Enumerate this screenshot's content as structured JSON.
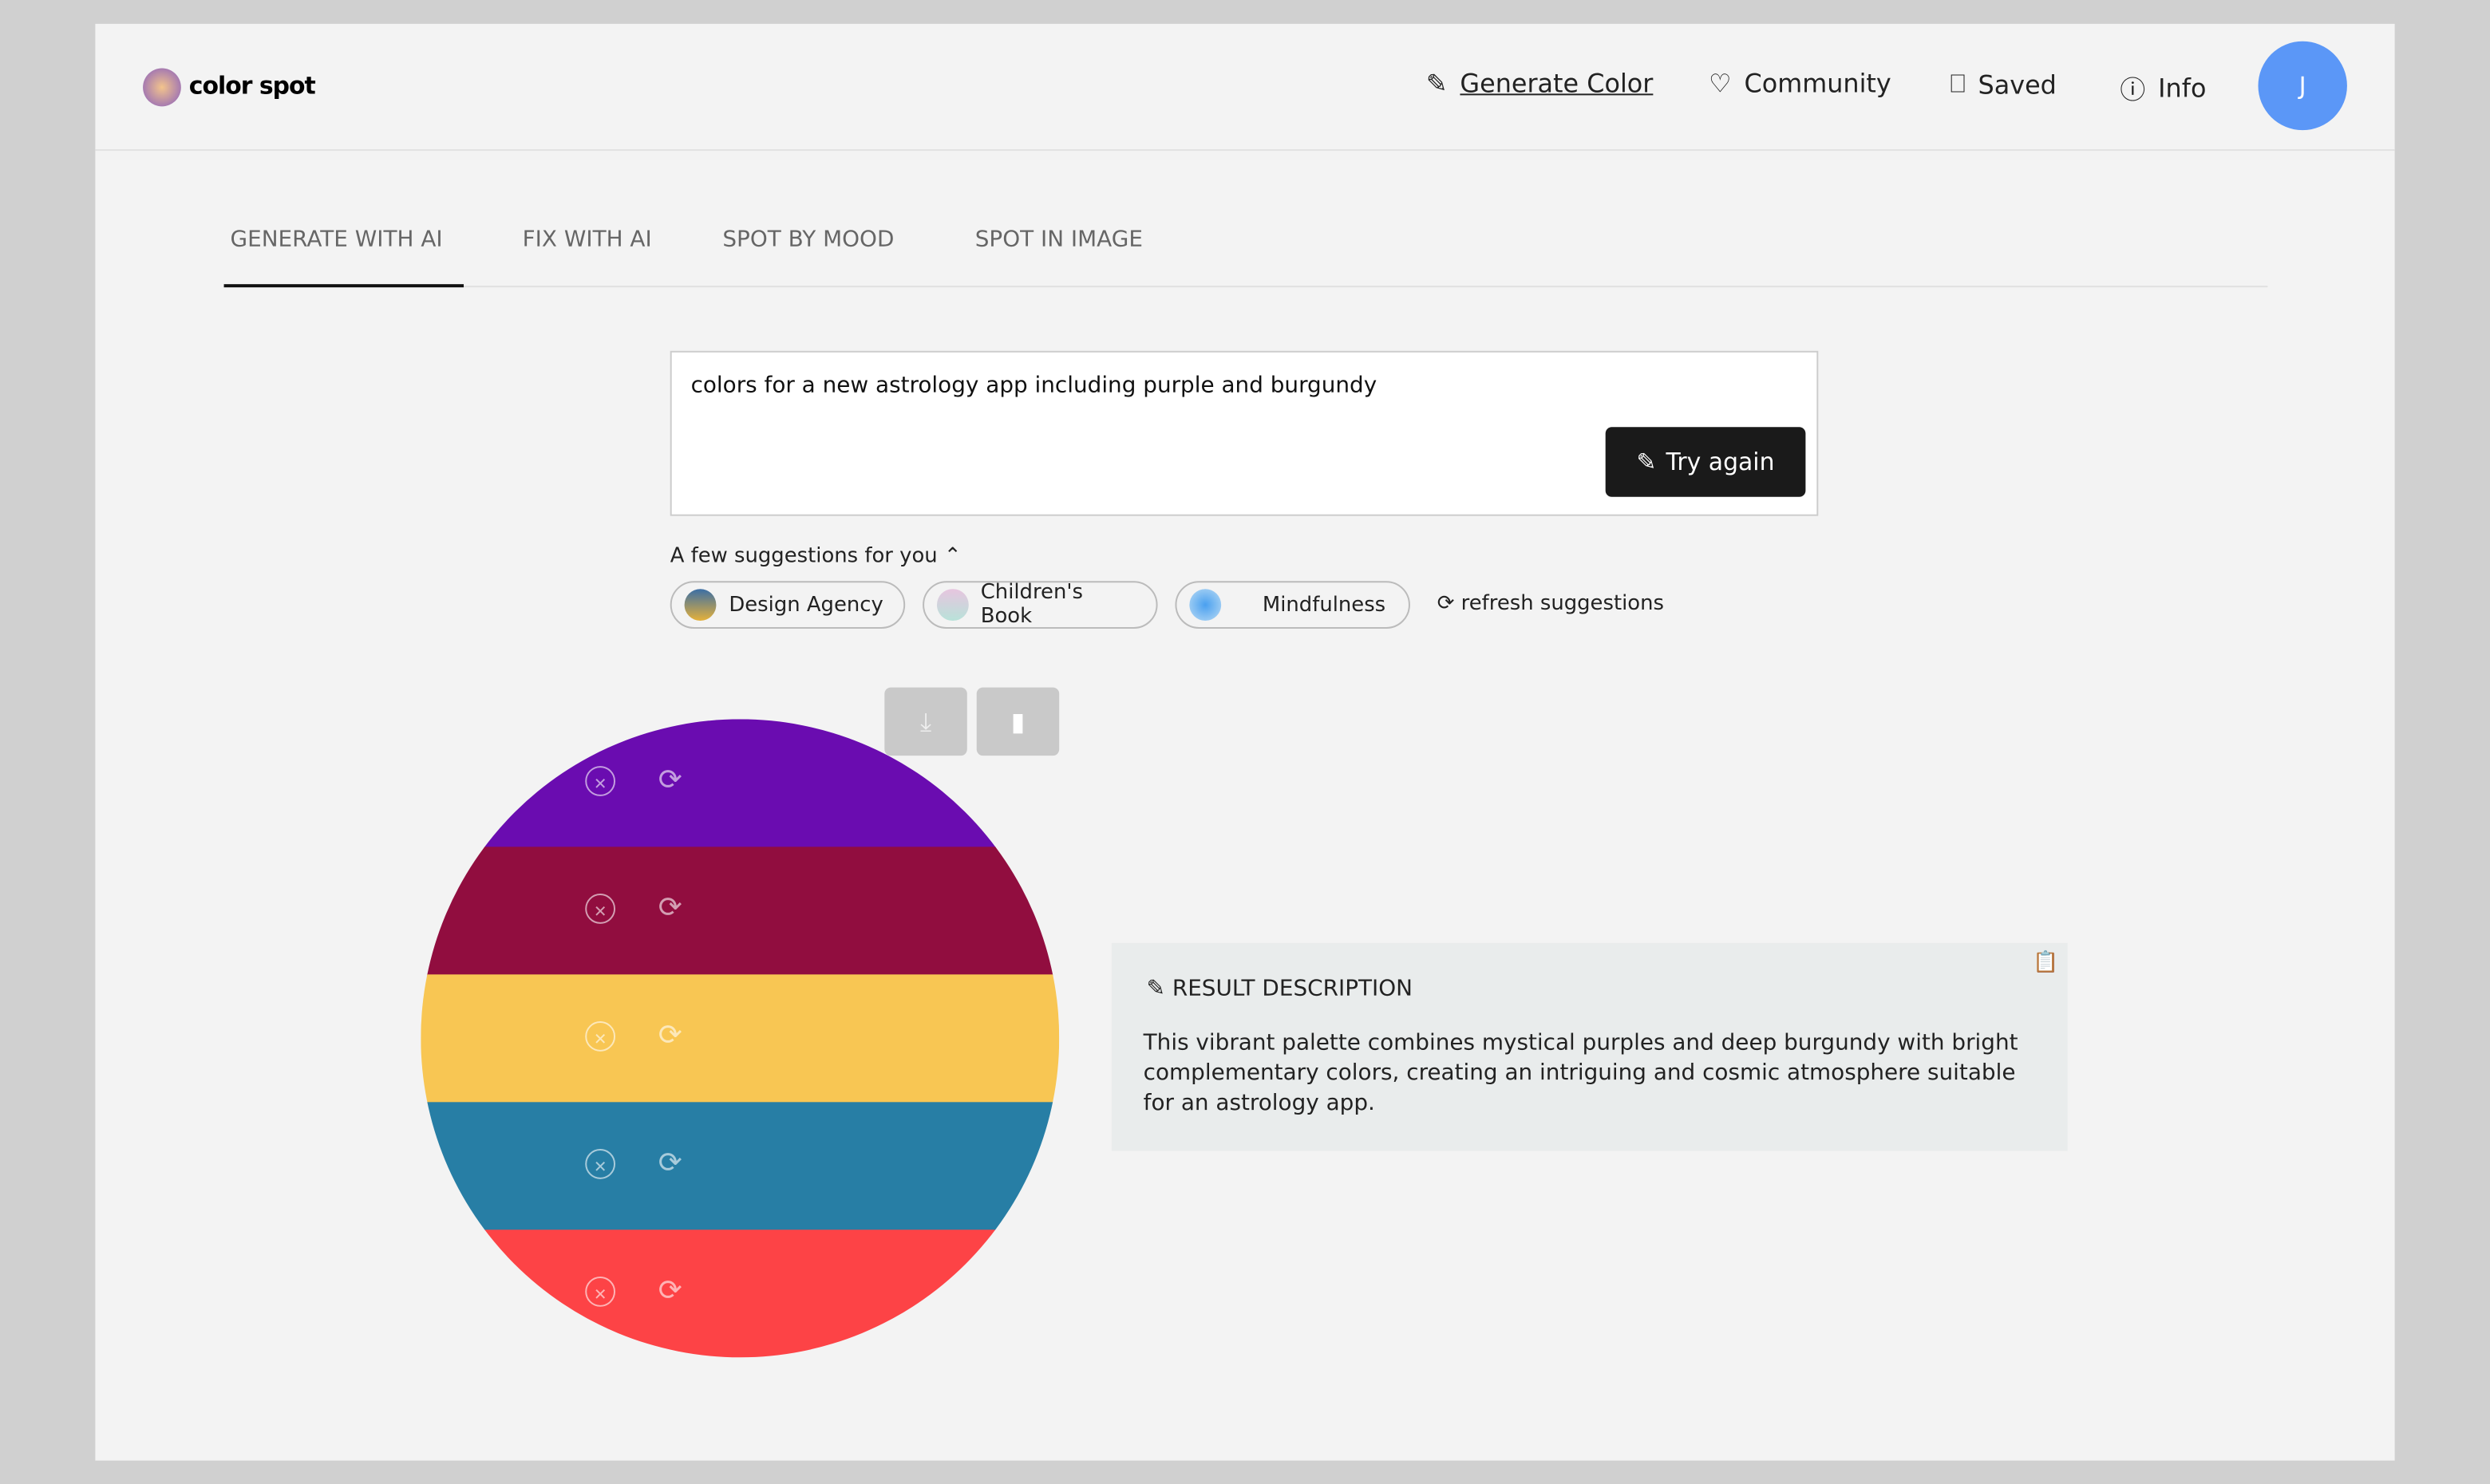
{
  "header": {
    "logo": "color spot",
    "nav": [
      "Generate Color",
      "Community",
      "Saved",
      "Info"
    ],
    "avatar": "J"
  },
  "tabs": [
    "GENERATE WITH AI",
    "FIX WITH AI",
    "SPOT BY MOOD",
    "SPOT IN IMAGE"
  ],
  "prompt": {
    "text": "colors for a new astrology app including purple and burgundy",
    "button": "Try again"
  },
  "suggestions": {
    "label": "A few suggestions for you",
    "items": [
      "Design Agency",
      "Children's Book",
      "Mindfulness"
    ],
    "refresh": "refresh suggestions"
  },
  "palette": [
    "#6a0cb0",
    "#910d3f",
    "#f8c653",
    "#277ea5",
    "#fd4346"
  ],
  "description": {
    "title": "RESULT DESCRIPTION",
    "text": "This vibrant palette combines mystical purples and deep burgundy with bright complementary colors, creating an intriguing and cosmic atmosphere suitable for an astrology app."
  }
}
